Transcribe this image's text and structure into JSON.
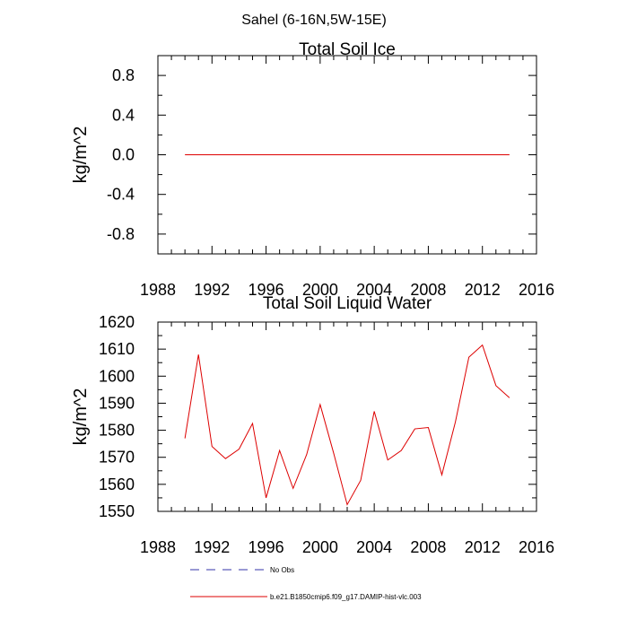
{
  "figure_title": "Sahel (6-16N,5W-15E)",
  "legend": {
    "entries": [
      {
        "label": "No Obs",
        "color": "#3333aa",
        "dash": "dashed"
      },
      {
        "label": "b.e21.B1850cmip6.f09_g17.DAMIP-hist-vlc.003",
        "color": "#dd0000",
        "dash": "solid"
      }
    ]
  },
  "chart_data": [
    {
      "type": "line",
      "title": "Total Soil Ice",
      "xlabel": "",
      "ylabel": "kg/m^2",
      "xlim": [
        1988,
        2016
      ],
      "ylim": [
        -1.0,
        1.0
      ],
      "xticks": [
        1988,
        1992,
        1996,
        2000,
        2004,
        2008,
        2012,
        2016
      ],
      "yticks": [
        -0.8,
        -0.4,
        0.0,
        0.4,
        0.8
      ],
      "ytick_labels": [
        "-0.8",
        "-0.4",
        "0.0",
        "0.4",
        "0.8"
      ],
      "series": [
        {
          "name": "b.e21.B1850cmip6.f09_g17.DAMIP-hist-vlc.003",
          "color": "#dd0000",
          "x": [
            1990,
            1991,
            1992,
            1993,
            1994,
            1995,
            1996,
            1997,
            1998,
            1999,
            2000,
            2001,
            2002,
            2003,
            2004,
            2005,
            2006,
            2007,
            2008,
            2009,
            2010,
            2011,
            2012,
            2013,
            2014
          ],
          "values": [
            0,
            0,
            0,
            0,
            0,
            0,
            0,
            0,
            0,
            0,
            0,
            0,
            0,
            0,
            0,
            0,
            0,
            0,
            0,
            0,
            0,
            0,
            0,
            0,
            0
          ]
        }
      ]
    },
    {
      "type": "line",
      "title": "Total Soil Liquid Water",
      "xlabel": "",
      "ylabel": "kg/m^2",
      "xlim": [
        1988,
        2016
      ],
      "ylim": [
        1550,
        1620
      ],
      "xticks": [
        1988,
        1992,
        1996,
        2000,
        2004,
        2008,
        2012,
        2016
      ],
      "yticks": [
        1550,
        1560,
        1570,
        1580,
        1590,
        1600,
        1610,
        1620
      ],
      "ytick_labels": [
        "1550",
        "1560",
        "1570",
        "1580",
        "1590",
        "1600",
        "1610",
        "1620"
      ],
      "series": [
        {
          "name": "b.e21.B1850cmip6.f09_g17.DAMIP-hist-vlc.003",
          "color": "#dd0000",
          "x": [
            1990,
            1991,
            1992,
            1993,
            1994,
            1995,
            1996,
            1997,
            1998,
            1999,
            2000,
            2001,
            2002,
            2003,
            2004,
            2005,
            2006,
            2007,
            2008,
            2009,
            2010,
            2011,
            2012,
            2013,
            2014
          ],
          "values": [
            1577,
            1608,
            1574,
            1569.5,
            1573,
            1582.5,
            1555,
            1572.5,
            1558.5,
            1571,
            1589.5,
            1571.5,
            1552.5,
            1561.5,
            1587,
            1569,
            1572.5,
            1580.5,
            1581,
            1563.5,
            1583,
            1607,
            1611.5,
            1596.5,
            1592
          ]
        }
      ]
    }
  ]
}
